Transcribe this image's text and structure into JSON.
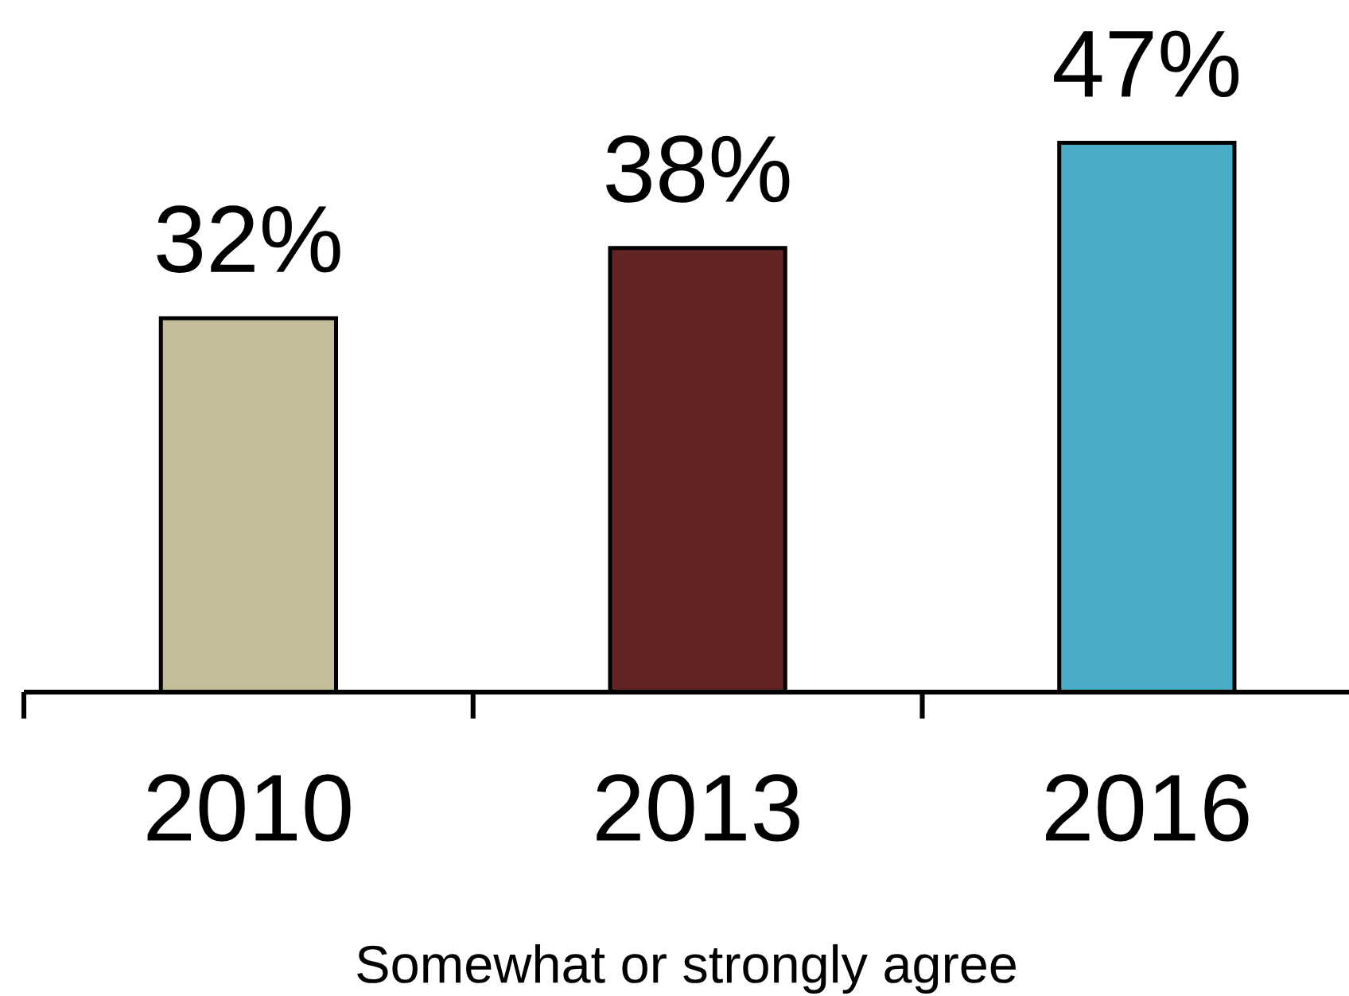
{
  "chart_data": {
    "type": "bar",
    "xlabel": "Somewhat or strongly agree",
    "categories": [
      "2010",
      "2013",
      "2016"
    ],
    "values": [
      32,
      38,
      47
    ],
    "colors": [
      "#c5bd98",
      "#622425",
      "#4bacc6"
    ],
    "value_labels": [
      "32%",
      "38%",
      "47%"
    ]
  }
}
